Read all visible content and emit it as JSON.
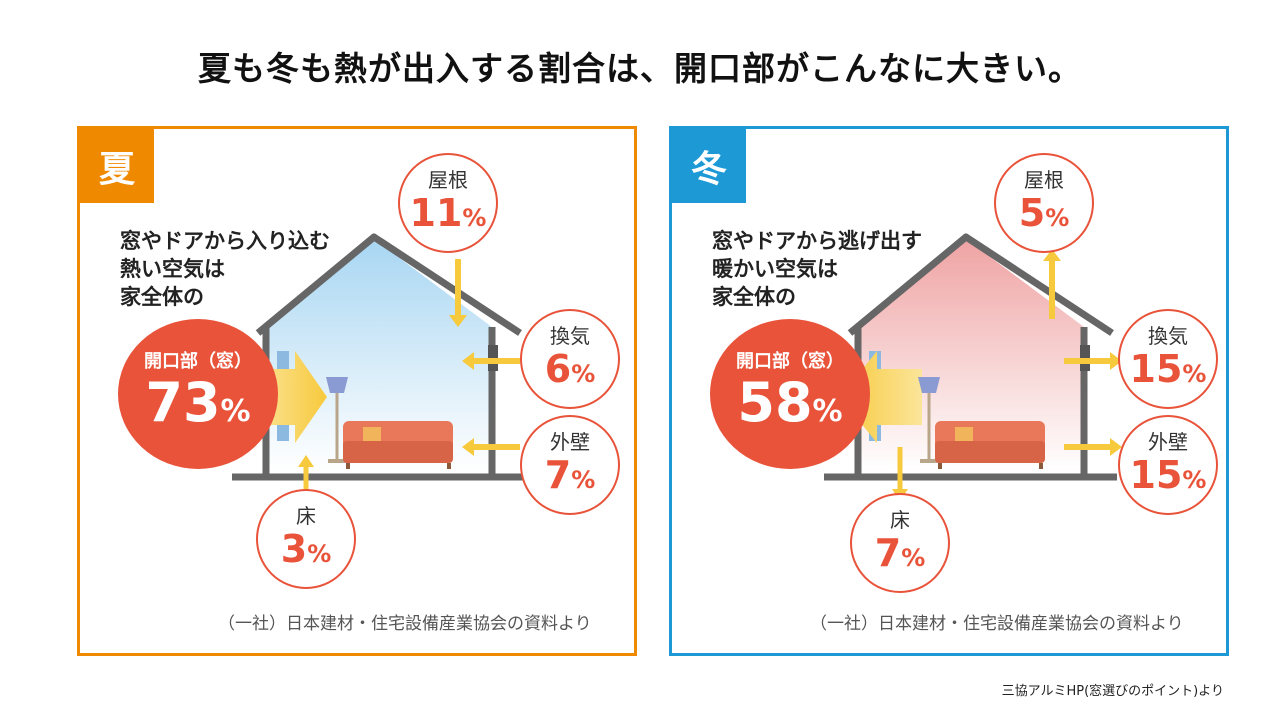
{
  "title": "夏も冬も熱が出入する割合は、開口部がこんなに大きい。",
  "panels": {
    "summer": {
      "season": "夏",
      "description": [
        "窓やドアから入り込む",
        "熱い空気は",
        "家全体の"
      ],
      "opening": {
        "label": "開口部（窓）",
        "value": "73",
        "unit": "%"
      },
      "roof": {
        "label": "屋根",
        "value": "11",
        "unit": "%"
      },
      "vent": {
        "label": "換気",
        "value": "6",
        "unit": "%"
      },
      "wall": {
        "label": "外壁",
        "value": "7",
        "unit": "%"
      },
      "floor": {
        "label": "床",
        "value": "3",
        "unit": "%"
      },
      "source": "（一社）日本建材・住宅設備産業協会の資料より"
    },
    "winter": {
      "season": "冬",
      "description": [
        "窓やドアから逃げ出す",
        "暖かい空気は",
        "家全体の"
      ],
      "opening": {
        "label": "開口部（窓）",
        "value": "58",
        "unit": "%"
      },
      "roof": {
        "label": "屋根",
        "value": "5",
        "unit": "%"
      },
      "vent": {
        "label": "換気",
        "value": "15",
        "unit": "%"
      },
      "wall": {
        "label": "外壁",
        "value": "15",
        "unit": "%"
      },
      "floor": {
        "label": "床",
        "value": "7",
        "unit": "%"
      },
      "source": "（一社）日本建材・住宅設備産業協会の資料より"
    }
  },
  "footnote": "三協アルミHP(窓選びのポイント)より",
  "colors": {
    "summer": "#ef8a00",
    "winter": "#1d9ad6",
    "accent": "#e8533a",
    "arrow": "#f7c93c"
  }
}
